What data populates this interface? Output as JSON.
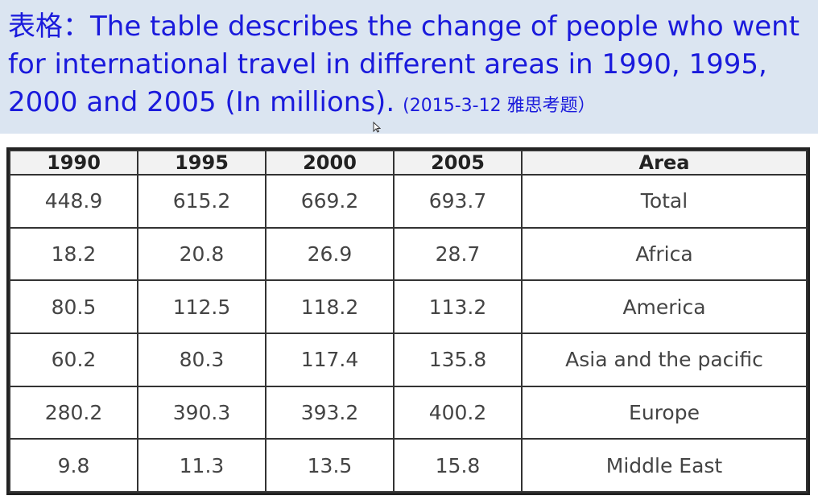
{
  "header": {
    "title": "表格：The table describes the change of people who went for international travel in different areas in 1990, 1995, 2000 and 2005 (In millions).",
    "note": "(2015-3-12 雅思考题）"
  },
  "chart_data": {
    "type": "table",
    "columns": [
      "1990",
      "1995",
      "2000",
      "2005",
      "Area"
    ],
    "rows": [
      [
        "448.9",
        "615.2",
        "669.2",
        "693.7",
        "Total"
      ],
      [
        "18.2",
        "20.8",
        "26.9",
        "28.7",
        "Africa"
      ],
      [
        "80.5",
        "112.5",
        "118.2",
        "113.2",
        "America"
      ],
      [
        "60.2",
        "80.3",
        "117.4",
        "135.8",
        "Asia and the pacific"
      ],
      [
        "280.2",
        "390.3",
        "393.2",
        "400.2",
        "Europe"
      ],
      [
        "9.8",
        "11.3",
        "13.5",
        "15.8",
        "Middle East"
      ]
    ]
  }
}
